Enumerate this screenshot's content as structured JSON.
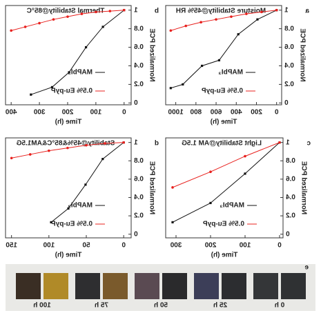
{
  "chart_data": [
    {
      "type": "line",
      "panel_label": "a",
      "title": "Moisture Stability@45% RH",
      "xlabel": "Time (h)",
      "ylabel": "Normalized PCE",
      "xlim": [
        -50,
        1100
      ],
      "ylim": [
        -0.02,
        1.05
      ],
      "xticks": [
        0,
        200,
        400,
        600,
        800,
        1000
      ],
      "yticks": [
        0.0,
        0.2,
        0.4,
        0.6,
        0.8,
        1.0
      ],
      "series": [
        {
          "name": "MAPbI₃",
          "color": "#111111",
          "x": [
            0,
            190,
            380,
            570,
            740,
            930,
            1050
          ],
          "values": [
            1.0,
            0.9,
            0.74,
            0.46,
            0.4,
            0.2,
            0.16
          ]
        },
        {
          "name": "0.5% Eu-pyP",
          "color": "#e8201d",
          "x": [
            0,
            150,
            300,
            450,
            600,
            750,
            900,
            1050
          ],
          "values": [
            1.0,
            0.98,
            0.96,
            0.93,
            0.9,
            0.87,
            0.83,
            0.78
          ]
        }
      ]
    },
    {
      "type": "line",
      "panel_label": "b",
      "title": "Thermal Stability@85°C",
      "xlabel": "Time (h)",
      "ylabel": "Normalized PCE",
      "xlim": [
        -25,
        420
      ],
      "ylim": [
        -0.02,
        1.05
      ],
      "xticks": [
        0,
        100,
        200,
        300,
        400
      ],
      "yticks": [
        0.0,
        0.2,
        0.4,
        0.6,
        0.8,
        1.0
      ],
      "series": [
        {
          "name": "MAPbI₃",
          "color": "#111111",
          "x": [
            0,
            75,
            135,
            195,
            255,
            330
          ],
          "values": [
            1.0,
            0.82,
            0.6,
            0.33,
            0.17,
            0.09
          ]
        },
        {
          "name": "0.5% Eu-pyP",
          "color": "#e8201d",
          "x": [
            0,
            50,
            100,
            150,
            200,
            250,
            300,
            350,
            400
          ],
          "values": [
            1.0,
            0.99,
            0.98,
            0.96,
            0.93,
            0.9,
            0.86,
            0.82,
            0.78
          ]
        }
      ]
    },
    {
      "type": "line",
      "panel_label": "c",
      "title": "Light Stability@AM 1.5G",
      "xlabel": "Time (h)",
      "ylabel": "Normalized PCE",
      "xlim": [
        -10,
        330
      ],
      "ylim": [
        -0.04,
        1.05
      ],
      "xticks": [
        0,
        100,
        200,
        300
      ],
      "yticks": [
        0.0,
        0.2,
        0.4,
        0.6,
        0.8,
        1.0
      ],
      "series": [
        {
          "name": "MAPbI₃",
          "color": "#111111",
          "x": [
            0,
            100,
            200,
            310
          ],
          "values": [
            1.0,
            0.66,
            0.34,
            0.13
          ]
        },
        {
          "name": "0.5% Eu-pyP",
          "color": "#e8201d",
          "x": [
            0,
            100,
            200,
            310
          ],
          "values": [
            1.0,
            0.85,
            0.68,
            0.51
          ]
        }
      ]
    },
    {
      "type": "line",
      "panel_label": "d",
      "title": "Stability@45%&85°C&AM1.5G",
      "xlabel": "Time (h)",
      "ylabel": "Normalized PCE",
      "xlim": [
        -10,
        158
      ],
      "ylim": [
        -0.04,
        1.05
      ],
      "xticks": [
        0,
        50,
        100,
        150
      ],
      "yticks": [
        0.0,
        0.2,
        0.4,
        0.6,
        0.8,
        1.0
      ],
      "series": [
        {
          "name": "MAPbI₃",
          "color": "#111111",
          "x": [
            0,
            28,
            51,
            74,
            97
          ],
          "values": [
            1.0,
            0.82,
            0.54,
            0.28,
            0.13
          ]
        },
        {
          "name": "0.5% Eu-pyP",
          "color": "#e8201d",
          "x": [
            0,
            25,
            50,
            75,
            100,
            125,
            150
          ],
          "values": [
            1.0,
            0.99,
            0.97,
            0.94,
            0.91,
            0.87,
            0.83
          ]
        }
      ]
    }
  ],
  "photo": {
    "panel_label": "e",
    "times": [
      "0 h",
      "25 h",
      "50 h",
      "75 h",
      "100 h"
    ]
  }
}
